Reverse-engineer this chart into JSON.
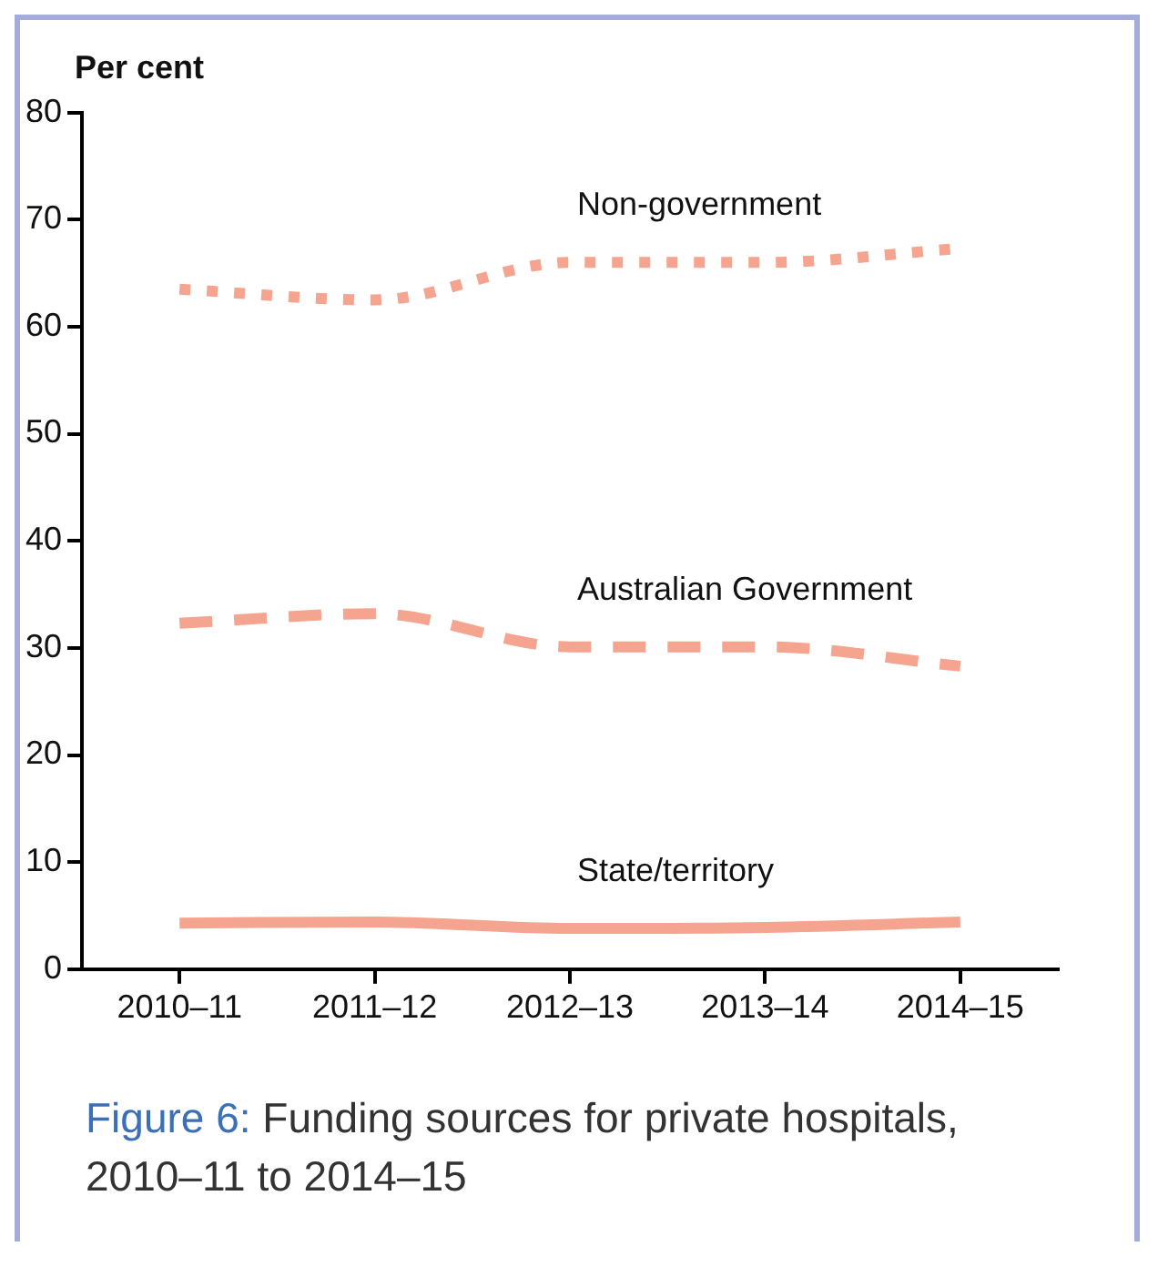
{
  "chart_data": {
    "type": "line",
    "title": "Figure 6: Funding sources for private hospitals, 2010–11 to 2014–15",
    "ylabel": "Per cent",
    "categories": [
      "2010–11",
      "2011–12",
      "2012–13",
      "2013–14",
      "2014–15"
    ],
    "series": [
      {
        "name": "Non-government",
        "color": "#f4a48f",
        "line_style": "dotted",
        "values": [
          63.5,
          62.5,
          66,
          66,
          67.3
        ]
      },
      {
        "name": "Australian Government",
        "color": "#f4a48f",
        "line_style": "dashed",
        "values": [
          32.3,
          33.2,
          30.1,
          30.1,
          28.3
        ]
      },
      {
        "name": "State/territory",
        "color": "#f4a48f",
        "line_style": "solid",
        "values": [
          4.3,
          4.4,
          3.8,
          3.9,
          4.4
        ]
      }
    ],
    "ylim": [
      0,
      80
    ],
    "yticks": [
      0,
      10,
      20,
      30,
      40,
      50,
      60,
      70,
      80
    ],
    "grid": false,
    "legend": false,
    "marker": "none"
  }
}
